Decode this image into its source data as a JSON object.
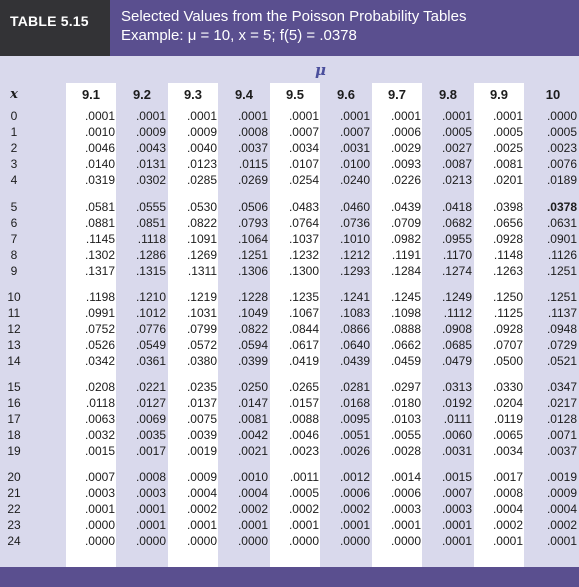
{
  "header": {
    "table_label": "TABLE 5.15",
    "title": "Selected Values from the Poisson Probability Tables",
    "example": "Example: μ = 10, x = 5; f(5) = .0378"
  },
  "mu_symbol": "μ",
  "x_label": "x",
  "columns": [
    "9.1",
    "9.2",
    "9.3",
    "9.4",
    "9.5",
    "9.6",
    "9.7",
    "9.8",
    "9.9",
    "10"
  ],
  "highlight": {
    "row_x": "5",
    "column": "10",
    "value": ".0378"
  },
  "groups": [
    [
      {
        "x": "0",
        "values": [
          ".0001",
          ".0001",
          ".0001",
          ".0001",
          ".0001",
          ".0001",
          ".0001",
          ".0001",
          ".0001",
          ".0000"
        ]
      },
      {
        "x": "1",
        "values": [
          ".0010",
          ".0009",
          ".0009",
          ".0008",
          ".0007",
          ".0007",
          ".0006",
          ".0005",
          ".0005",
          ".0005"
        ]
      },
      {
        "x": "2",
        "values": [
          ".0046",
          ".0043",
          ".0040",
          ".0037",
          ".0034",
          ".0031",
          ".0029",
          ".0027",
          ".0025",
          ".0023"
        ]
      },
      {
        "x": "3",
        "values": [
          ".0140",
          ".0131",
          ".0123",
          ".0115",
          ".0107",
          ".0100",
          ".0093",
          ".0087",
          ".0081",
          ".0076"
        ]
      },
      {
        "x": "4",
        "values": [
          ".0319",
          ".0302",
          ".0285",
          ".0269",
          ".0254",
          ".0240",
          ".0226",
          ".0213",
          ".0201",
          ".0189"
        ]
      }
    ],
    [
      {
        "x": "5",
        "values": [
          ".0581",
          ".0555",
          ".0530",
          ".0506",
          ".0483",
          ".0460",
          ".0439",
          ".0418",
          ".0398",
          ".0378"
        ]
      },
      {
        "x": "6",
        "values": [
          ".0881",
          ".0851",
          ".0822",
          ".0793",
          ".0764",
          ".0736",
          ".0709",
          ".0682",
          ".0656",
          ".0631"
        ]
      },
      {
        "x": "7",
        "values": [
          ".1145",
          ".1118",
          ".1091",
          ".1064",
          ".1037",
          ".1010",
          ".0982",
          ".0955",
          ".0928",
          ".0901"
        ]
      },
      {
        "x": "8",
        "values": [
          ".1302",
          ".1286",
          ".1269",
          ".1251",
          ".1232",
          ".1212",
          ".1191",
          ".1170",
          ".1148",
          ".1126"
        ]
      },
      {
        "x": "9",
        "values": [
          ".1317",
          ".1315",
          ".1311",
          ".1306",
          ".1300",
          ".1293",
          ".1284",
          ".1274",
          ".1263",
          ".1251"
        ]
      }
    ],
    [
      {
        "x": "10",
        "values": [
          ".1198",
          ".1210",
          ".1219",
          ".1228",
          ".1235",
          ".1241",
          ".1245",
          ".1249",
          ".1250",
          ".1251"
        ]
      },
      {
        "x": "11",
        "values": [
          ".0991",
          ".1012",
          ".1031",
          ".1049",
          ".1067",
          ".1083",
          ".1098",
          ".1112",
          ".1125",
          ".1137"
        ]
      },
      {
        "x": "12",
        "values": [
          ".0752",
          ".0776",
          ".0799",
          ".0822",
          ".0844",
          ".0866",
          ".0888",
          ".0908",
          ".0928",
          ".0948"
        ]
      },
      {
        "x": "13",
        "values": [
          ".0526",
          ".0549",
          ".0572",
          ".0594",
          ".0617",
          ".0640",
          ".0662",
          ".0685",
          ".0707",
          ".0729"
        ]
      },
      {
        "x": "14",
        "values": [
          ".0342",
          ".0361",
          ".0380",
          ".0399",
          ".0419",
          ".0439",
          ".0459",
          ".0479",
          ".0500",
          ".0521"
        ]
      }
    ],
    [
      {
        "x": "15",
        "values": [
          ".0208",
          ".0221",
          ".0235",
          ".0250",
          ".0265",
          ".0281",
          ".0297",
          ".0313",
          ".0330",
          ".0347"
        ]
      },
      {
        "x": "16",
        "values": [
          ".0118",
          ".0127",
          ".0137",
          ".0147",
          ".0157",
          ".0168",
          ".0180",
          ".0192",
          ".0204",
          ".0217"
        ]
      },
      {
        "x": "17",
        "values": [
          ".0063",
          ".0069",
          ".0075",
          ".0081",
          ".0088",
          ".0095",
          ".0103",
          ".0111",
          ".0119",
          ".0128"
        ]
      },
      {
        "x": "18",
        "values": [
          ".0032",
          ".0035",
          ".0039",
          ".0042",
          ".0046",
          ".0051",
          ".0055",
          ".0060",
          ".0065",
          ".0071"
        ]
      },
      {
        "x": "19",
        "values": [
          ".0015",
          ".0017",
          ".0019",
          ".0021",
          ".0023",
          ".0026",
          ".0028",
          ".0031",
          ".0034",
          ".0037"
        ]
      }
    ],
    [
      {
        "x": "20",
        "values": [
          ".0007",
          ".0008",
          ".0009",
          ".0010",
          ".0011",
          ".0012",
          ".0014",
          ".0015",
          ".0017",
          ".0019"
        ]
      },
      {
        "x": "21",
        "values": [
          ".0003",
          ".0003",
          ".0004",
          ".0004",
          ".0005",
          ".0006",
          ".0006",
          ".0007",
          ".0008",
          ".0009"
        ]
      },
      {
        "x": "22",
        "values": [
          ".0001",
          ".0001",
          ".0002",
          ".0002",
          ".0002",
          ".0002",
          ".0003",
          ".0003",
          ".0004",
          ".0004"
        ]
      },
      {
        "x": "23",
        "values": [
          ".0000",
          ".0001",
          ".0001",
          ".0001",
          ".0001",
          ".0001",
          ".0001",
          ".0001",
          ".0002",
          ".0002"
        ]
      },
      {
        "x": "24",
        "values": [
          ".0000",
          ".0000",
          ".0000",
          ".0000",
          ".0000",
          ".0000",
          ".0000",
          ".0001",
          ".0001",
          ".0001"
        ]
      }
    ]
  ],
  "colors": {
    "header_band": "#5a4f8f",
    "label_box": "#333336",
    "table_background": "#d9d9ec",
    "column_stripe": "#ffffff",
    "mu_accent": "#4b4f9c"
  }
}
